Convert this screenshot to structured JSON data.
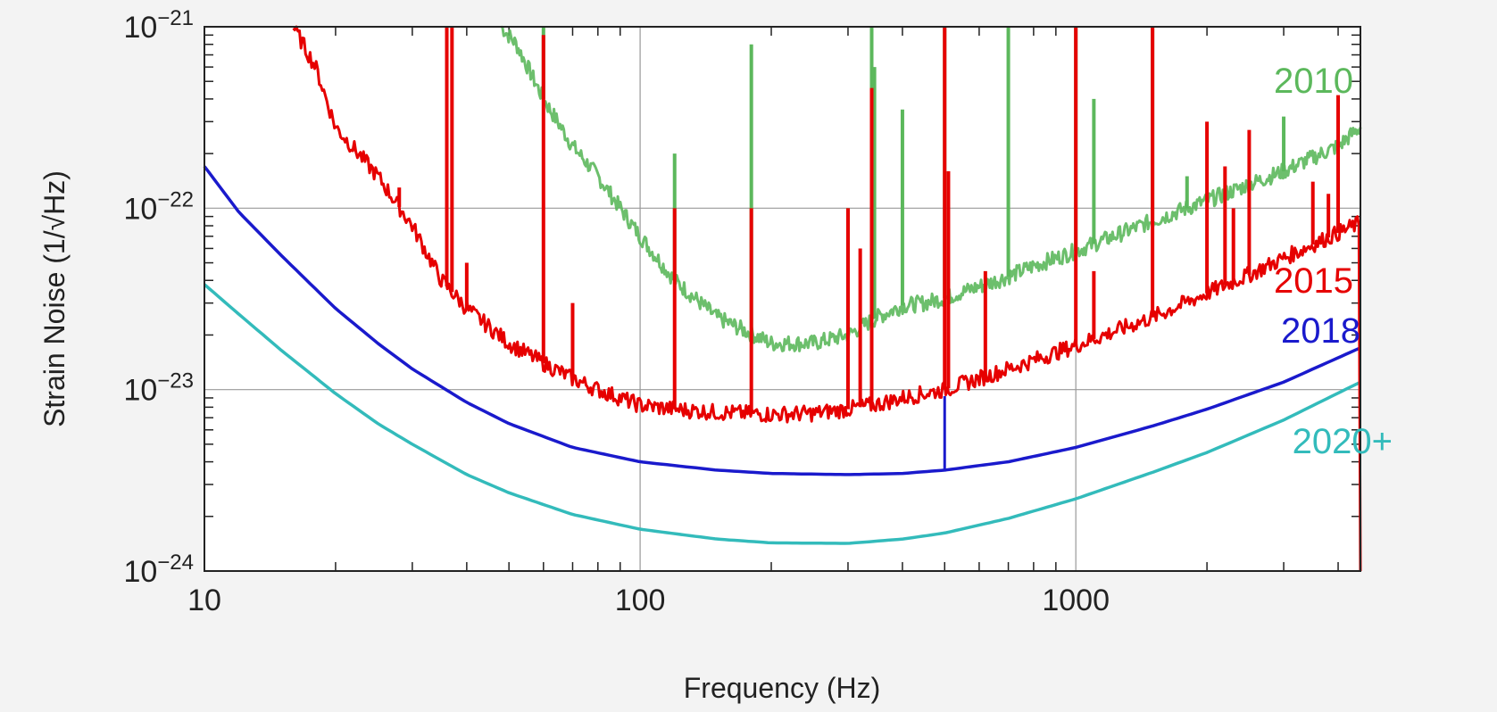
{
  "chart_data": {
    "type": "line",
    "title": "",
    "xlabel": "Frequency (Hz)",
    "ylabel": "Strain Noise (1/√Hz)",
    "xscale": "log",
    "yscale": "log",
    "xlim": [
      10,
      4500
    ],
    "ylim": [
      1e-24,
      1e-21
    ],
    "grid": true,
    "x_ticks": [
      {
        "value": 10,
        "label": "10"
      },
      {
        "value": 100,
        "label": "100"
      },
      {
        "value": 1000,
        "label": "1000"
      }
    ],
    "y_ticks": [
      {
        "value": 1e-21,
        "label": "10",
        "exp": "−21"
      },
      {
        "value": 1e-22,
        "label": "10",
        "exp": "−22"
      },
      {
        "value": 1e-23,
        "label": "10",
        "exp": "−23"
      },
      {
        "value": 1e-24,
        "label": "10",
        "exp": "−24"
      }
    ],
    "series": [
      {
        "name": "2010",
        "color": "#5cb85c",
        "style": "noisy",
        "x": [
          48,
          52,
          60,
          70,
          80,
          100,
          120,
          150,
          200,
          250,
          300,
          350,
          400,
          450,
          500,
          600,
          700,
          800,
          1000,
          1500,
          2000,
          2500,
          3000,
          3500,
          4000,
          4500
        ],
        "y": [
          1e-21,
          8e-22,
          4e-22,
          2.2e-22,
          1.5e-22,
          7e-23,
          4e-23,
          2.5e-23,
          1.8e-23,
          1.8e-23,
          2e-23,
          2.5e-23,
          2.9e-23,
          3e-23,
          3.2e-23,
          3.7e-23,
          4.2e-23,
          4.8e-23,
          5.8e-23,
          8.5e-23,
          1.1e-22,
          1.35e-22,
          1.6e-22,
          1.9e-22,
          2.2e-22,
          2.8e-22
        ],
        "peaks": [
          [
            60,
            1e-21
          ],
          [
            120,
            2e-22
          ],
          [
            180,
            8e-22
          ],
          [
            300,
            1e-22
          ],
          [
            340,
            1e-21
          ],
          [
            345,
            6e-22
          ],
          [
            400,
            3.5e-22
          ],
          [
            500,
            1e-21
          ],
          [
            700,
            1e-21
          ],
          [
            1000,
            1e-21
          ],
          [
            1100,
            4e-22
          ],
          [
            1500,
            1e-21
          ],
          [
            1800,
            1.5e-22
          ],
          [
            3000,
            3.2e-22
          ]
        ]
      },
      {
        "name": "2015",
        "color": "#e60000",
        "style": "noisy",
        "x": [
          16,
          18,
          20,
          25,
          30,
          35,
          40,
          50,
          60,
          70,
          80,
          100,
          120,
          150,
          200,
          250,
          300,
          350,
          400,
          500,
          600,
          700,
          800,
          1000,
          1500,
          2000,
          2500,
          3000,
          3500,
          4000,
          4500
        ],
        "y": [
          1e-21,
          6e-22,
          2.8e-22,
          1.5e-22,
          8e-23,
          4e-23,
          2.8e-23,
          1.8e-23,
          1.4e-23,
          1.15e-23,
          1e-23,
          8.2e-24,
          7.8e-24,
          7.5e-24,
          7.3e-24,
          7.4e-24,
          7.8e-24,
          8.3e-24,
          9e-24,
          1e-23,
          1.15e-23,
          1.3e-23,
          1.45e-23,
          1.75e-23,
          2.5e-23,
          3.4e-23,
          4.3e-23,
          5.3e-23,
          6.3e-23,
          7.3e-23,
          8.3e-23
        ],
        "peaks": [
          [
            28,
            1.3e-22
          ],
          [
            36,
            1e-21
          ],
          [
            37,
            1e-21
          ],
          [
            40,
            5e-23
          ],
          [
            60,
            9e-22
          ],
          [
            70,
            3e-23
          ],
          [
            120,
            1e-22
          ],
          [
            180,
            1e-22
          ],
          [
            300,
            1e-22
          ],
          [
            320,
            6e-23
          ],
          [
            340,
            4.6e-22
          ],
          [
            500,
            1e-21
          ],
          [
            510,
            1.6e-22
          ],
          [
            620,
            4.5e-23
          ],
          [
            1000,
            1e-21
          ],
          [
            1100,
            4.5e-23
          ],
          [
            1500,
            1e-21
          ],
          [
            2000,
            3e-22
          ],
          [
            2200,
            1.7e-22
          ],
          [
            2300,
            1e-22
          ],
          [
            2500,
            2.7e-22
          ],
          [
            3500,
            1.4e-22
          ],
          [
            3800,
            1.2e-22
          ],
          [
            4000,
            4.2e-22
          ]
        ]
      },
      {
        "name": "2018",
        "color": "#1a1acc",
        "style": "smooth",
        "x": [
          10,
          12,
          15,
          20,
          25,
          30,
          40,
          50,
          70,
          100,
          150,
          200,
          300,
          400,
          500,
          700,
          1000,
          1500,
          2000,
          3000,
          4500
        ],
        "y": [
          1.7e-22,
          9.5e-23,
          5.5e-23,
          2.8e-23,
          1.8e-23,
          1.3e-23,
          8.5e-24,
          6.5e-24,
          4.8e-24,
          4e-24,
          3.6e-24,
          3.45e-24,
          3.4e-24,
          3.45e-24,
          3.6e-24,
          4e-24,
          4.8e-24,
          6.3e-24,
          7.8e-24,
          1.1e-23,
          1.7e-23
        ],
        "peaks": [
          [
            500,
            9.2e-24
          ]
        ]
      },
      {
        "name": "2020+",
        "color": "#33bbbb",
        "style": "smooth",
        "x": [
          10,
          12,
          15,
          20,
          25,
          30,
          40,
          50,
          70,
          100,
          150,
          200,
          300,
          400,
          500,
          700,
          1000,
          1500,
          2000,
          3000,
          4500
        ],
        "y": [
          3.8e-23,
          2.6e-23,
          1.65e-23,
          9.5e-24,
          6.5e-24,
          5e-24,
          3.4e-24,
          2.7e-24,
          2.05e-24,
          1.7e-24,
          1.5e-24,
          1.43e-24,
          1.42e-24,
          1.5e-24,
          1.62e-24,
          1.95e-24,
          2.5e-24,
          3.5e-24,
          4.5e-24,
          6.8e-24,
          1.1e-23
        ],
        "peaks": []
      }
    ]
  }
}
